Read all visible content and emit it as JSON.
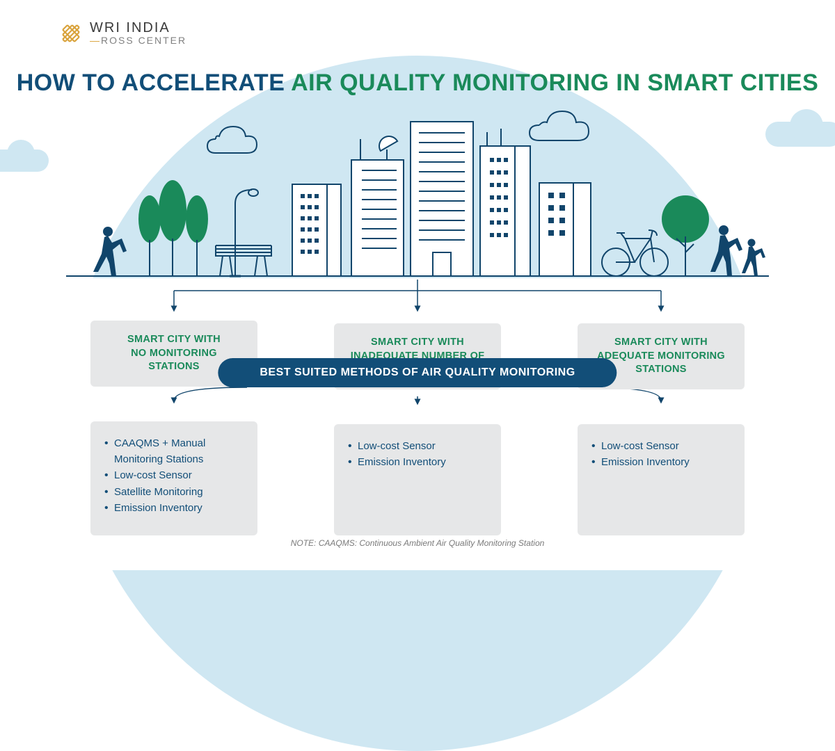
{
  "logo": {
    "main": "WRI INDIA",
    "sub_prefix": "—",
    "sub": "ROSS CENTER",
    "icon_color": "#d9a23a"
  },
  "headline": {
    "part_a": "HOW TO ACCELERATE ",
    "part_b": "AIR QUALITY MONITORING IN SMART CITIES",
    "color_a": "#124e78",
    "color_b": "#1a8a5a",
    "fontsize": 34
  },
  "illustration": {
    "sky_color": "#cfe7f2",
    "stroke_color": "#11456b",
    "tree_fill": "#1a8a5a",
    "person_fill": "#11456b",
    "stroke_width": 2
  },
  "banner": {
    "text": "BEST SUITED METHODS OF AIR QUALITY MONITORING",
    "bg": "#124e78",
    "fg": "#ffffff"
  },
  "columns": [
    {
      "header": "SMART CITY WITH\nNO MONITORING\nSTATIONS",
      "items": [
        "CAAQMS + Manual Monitoring Stations",
        "Low-cost Sensor",
        "Satellite Monitoring",
        "Emission Inventory"
      ]
    },
    {
      "header": "SMART CITY WITH\nINADEQUATE NUMBER OF\nMONITORING STATIONS",
      "items": [
        "Low-cost Sensor",
        "Emission Inventory"
      ]
    },
    {
      "header": "SMART CITY WITH\nADEQUATE MONITORING\nSTATIONS",
      "items": [
        "Low-cost Sensor",
        "Emission Inventory"
      ]
    }
  ],
  "card_style": {
    "bg": "#e6e7e8",
    "header_color": "#1a8a5a",
    "item_color": "#124e78",
    "header_fontsize": 14.5,
    "item_fontsize": 15,
    "radius": 6
  },
  "connectors": {
    "color": "#11456b",
    "width": 1.5
  },
  "note": "NOTE: CAAQMS: Continuous Ambient Air Quality Monitoring Station"
}
